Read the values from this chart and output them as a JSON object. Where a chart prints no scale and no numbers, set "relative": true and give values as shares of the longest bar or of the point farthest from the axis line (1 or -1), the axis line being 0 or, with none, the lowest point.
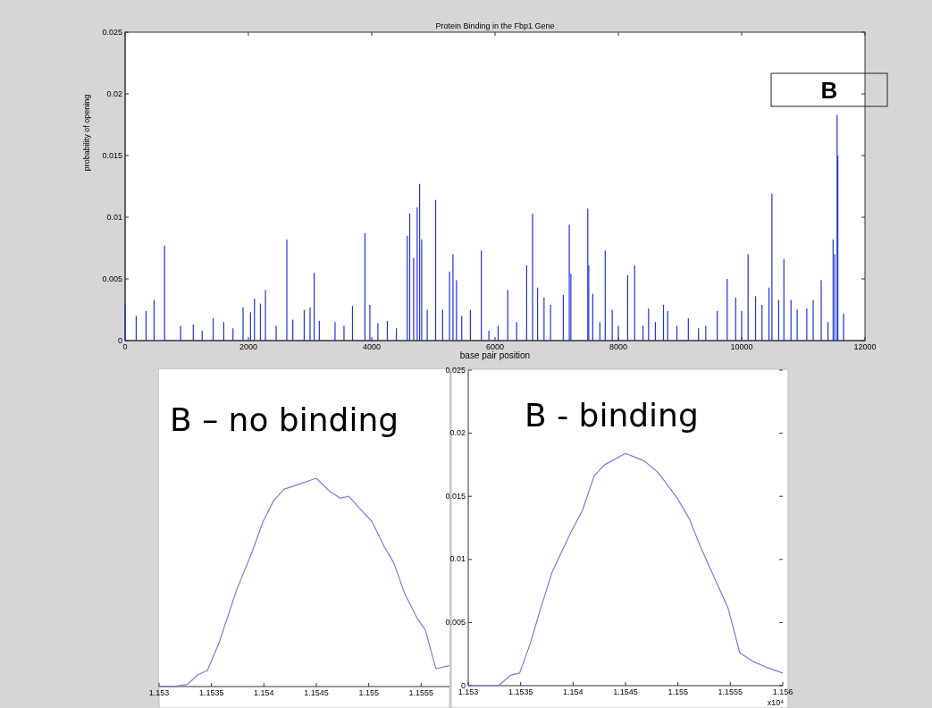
{
  "chart_data": [
    {
      "type": "bar",
      "title": "Protein Binding in the Fbp1 Gene",
      "xlabel": "base pair position",
      "ylabel": "probability of opening",
      "color": "#1f35e0",
      "x": [
        0,
        180,
        340,
        470,
        640,
        900,
        1106,
        1250,
        1428,
        1600,
        1750,
        1913,
        2034,
        2098,
        2195,
        2276,
        2450,
        2623,
        2720,
        2905,
        3000,
        3067,
        3150,
        3405,
        3550,
        3688,
        3890,
        3970,
        4100,
        4253,
        4400,
        4576,
        4616,
        4680,
        4737,
        4777,
        4810,
        4900,
        5036,
        5150,
        5262,
        5318,
        5375,
        5460,
        5600,
        5778,
        5900,
        6050,
        6206,
        6350,
        6513,
        6609,
        6690,
        6795,
        6900,
        7107,
        7204,
        7230,
        7504,
        7520,
        7585,
        7700,
        7787,
        7900,
        8000,
        8151,
        8264,
        8400,
        8490,
        8600,
        8732,
        8800,
        8950,
        9135,
        9300,
        9418,
        9604,
        9765,
        9903,
        10000,
        10104,
        10225,
        10330,
        10443,
        10491,
        10600,
        10685,
        10800,
        10900,
        11056,
        11160,
        11290,
        11400,
        11483,
        11510,
        11548,
        11560,
        11653
      ],
      "values": [
        0.0029,
        0.002,
        0.0024,
        0.0033,
        0.0077,
        0.0012,
        0.0013,
        0.0008,
        0.0018,
        0.0015,
        0.001,
        0.0027,
        0.0023,
        0.0034,
        0.003,
        0.0041,
        0.0012,
        0.0082,
        0.0017,
        0.0025,
        0.0027,
        0.0055,
        0.0016,
        0.0015,
        0.0012,
        0.0028,
        0.0087,
        0.0029,
        0.0014,
        0.0016,
        0.001,
        0.0085,
        0.0103,
        0.0067,
        0.0108,
        0.0127,
        0.0082,
        0.0025,
        0.0114,
        0.0025,
        0.0056,
        0.007,
        0.0049,
        0.002,
        0.0025,
        0.0073,
        0.0008,
        0.0012,
        0.0041,
        0.0015,
        0.0061,
        0.0103,
        0.0043,
        0.0035,
        0.0029,
        0.0037,
        0.0094,
        0.0054,
        0.0107,
        0.0061,
        0.0038,
        0.0015,
        0.0073,
        0.0025,
        0.0012,
        0.0053,
        0.0061,
        0.0012,
        0.0026,
        0.0015,
        0.0029,
        0.0024,
        0.0012,
        0.0018,
        0.001,
        0.0012,
        0.0024,
        0.005,
        0.0035,
        0.0024,
        0.007,
        0.0036,
        0.0029,
        0.0043,
        0.0119,
        0.0033,
        0.0066,
        0.0033,
        0.0025,
        0.0026,
        0.0033,
        0.0049,
        0.0015,
        0.0082,
        0.007,
        0.0183,
        0.015,
        0.0022
      ],
      "xlim": [
        0,
        12000
      ],
      "xticks": [
        0,
        2000,
        4000,
        6000,
        8000,
        10000,
        12000
      ],
      "ylim": [
        0,
        0.025
      ],
      "yticks": [
        0,
        0.005,
        0.01,
        0.015,
        0.02,
        0.025
      ],
      "annotations": [
        "B"
      ]
    },
    {
      "type": "line",
      "title": "B – no binding",
      "relative": true,
      "color": "#7b7be0",
      "tick_labels": "x",
      "x": [
        1.153,
        1.15317,
        1.15327,
        1.15337,
        1.15346,
        1.15357,
        1.15374,
        1.15389,
        1.15399,
        1.15409,
        1.15419,
        1.15431,
        1.1545,
        1.15463,
        1.15473,
        1.15481,
        1.15491,
        1.15503,
        1.15514,
        1.15524,
        1.15534,
        1.15546,
        1.15554,
        1.15564,
        1.15577
      ],
      "values": [
        0,
        0.003,
        0.01,
        0.057,
        0.076,
        0.207,
        0.464,
        0.65,
        0.79,
        0.89,
        0.947,
        0.967,
        1,
        0.936,
        0.904,
        0.914,
        0.857,
        0.793,
        0.679,
        0.593,
        0.45,
        0.329,
        0.271,
        0.086,
        0.1
      ],
      "xlim": [
        1.153,
        1.15577
      ],
      "xticks": [
        1.153,
        1.1535,
        1.154,
        1.1545,
        1.155,
        1.1555
      ]
    },
    {
      "type": "line",
      "title": "B - binding",
      "color": "#7b7be0",
      "x": [
        1.153,
        1.15329,
        1.1534,
        1.15349,
        1.15359,
        1.15369,
        1.1538,
        1.15397,
        1.15409,
        1.1542,
        1.1543,
        1.1545,
        1.15468,
        1.15481,
        1.15499,
        1.15511,
        1.15521,
        1.15534,
        1.15548,
        1.15559,
        1.15572,
        1.15583,
        1.156
      ],
      "values": [
        0,
        0,
        0.0008,
        0.001,
        0.0033,
        0.0061,
        0.009,
        0.012,
        0.0139,
        0.0166,
        0.0175,
        0.0184,
        0.0178,
        0.0169,
        0.0149,
        0.0132,
        0.0111,
        0.0087,
        0.0061,
        0.0026,
        0.0019,
        0.0015,
        0.001
      ],
      "xlim": [
        1.153,
        1.156
      ],
      "xticks": [
        1.153,
        1.1535,
        1.154,
        1.1545,
        1.155,
        1.1555,
        1.156
      ],
      "ylim": [
        0,
        0.025
      ],
      "yticks": [
        0,
        0.005,
        0.01,
        0.015,
        0.02,
        0.025
      ],
      "annotations": [
        "x10⁴"
      ]
    }
  ]
}
